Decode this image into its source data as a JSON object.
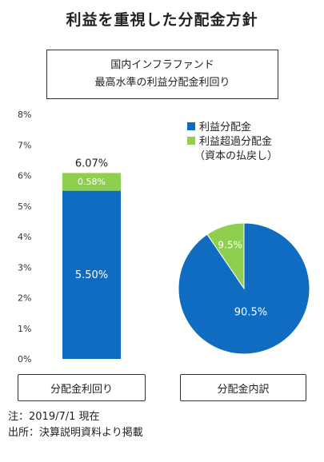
{
  "header": {
    "title": "利益を重視した分配金方針",
    "subtitle_line1": "国内インフラファンド",
    "subtitle_line2": "最高水準の利益分配金利回り"
  },
  "captions": {
    "bar": "分配金利回り",
    "pie": "分配金内訳"
  },
  "notes": {
    "line1": "注：2019/7/1 現在",
    "line2": "出所：決算説明資料より掲載"
  },
  "colors": {
    "blue": "#0f6cc0",
    "green": "#8fcf4f"
  },
  "chart_data": [
    {
      "type": "bar",
      "stacked": true,
      "categories": [
        ""
      ],
      "series": [
        {
          "name": "利益分配金",
          "values": [
            5.5
          ],
          "label": "5.50%"
        },
        {
          "name": "利益超過分配金",
          "values": [
            0.58
          ],
          "label": "0.58%"
        }
      ],
      "total_label": "6.07%",
      "ylim": [
        0,
        8
      ],
      "yticks": [
        "0%",
        "1%",
        "2%",
        "3%",
        "4%",
        "5%",
        "6%",
        "7%",
        "8%"
      ],
      "xlabel": "分配金利回り",
      "ylabel": ""
    },
    {
      "type": "pie",
      "slices": [
        {
          "name": "利益分配金",
          "value": 90.5,
          "label": "90.5%"
        },
        {
          "name": "利益超過分配金",
          "value": 9.5,
          "label": "9.5%"
        }
      ],
      "legend": [
        {
          "label": "利益分配金"
        },
        {
          "label": "利益超過分配金"
        },
        {
          "label": "（資本の払戻し）"
        }
      ],
      "legend_position": "top"
    }
  ]
}
